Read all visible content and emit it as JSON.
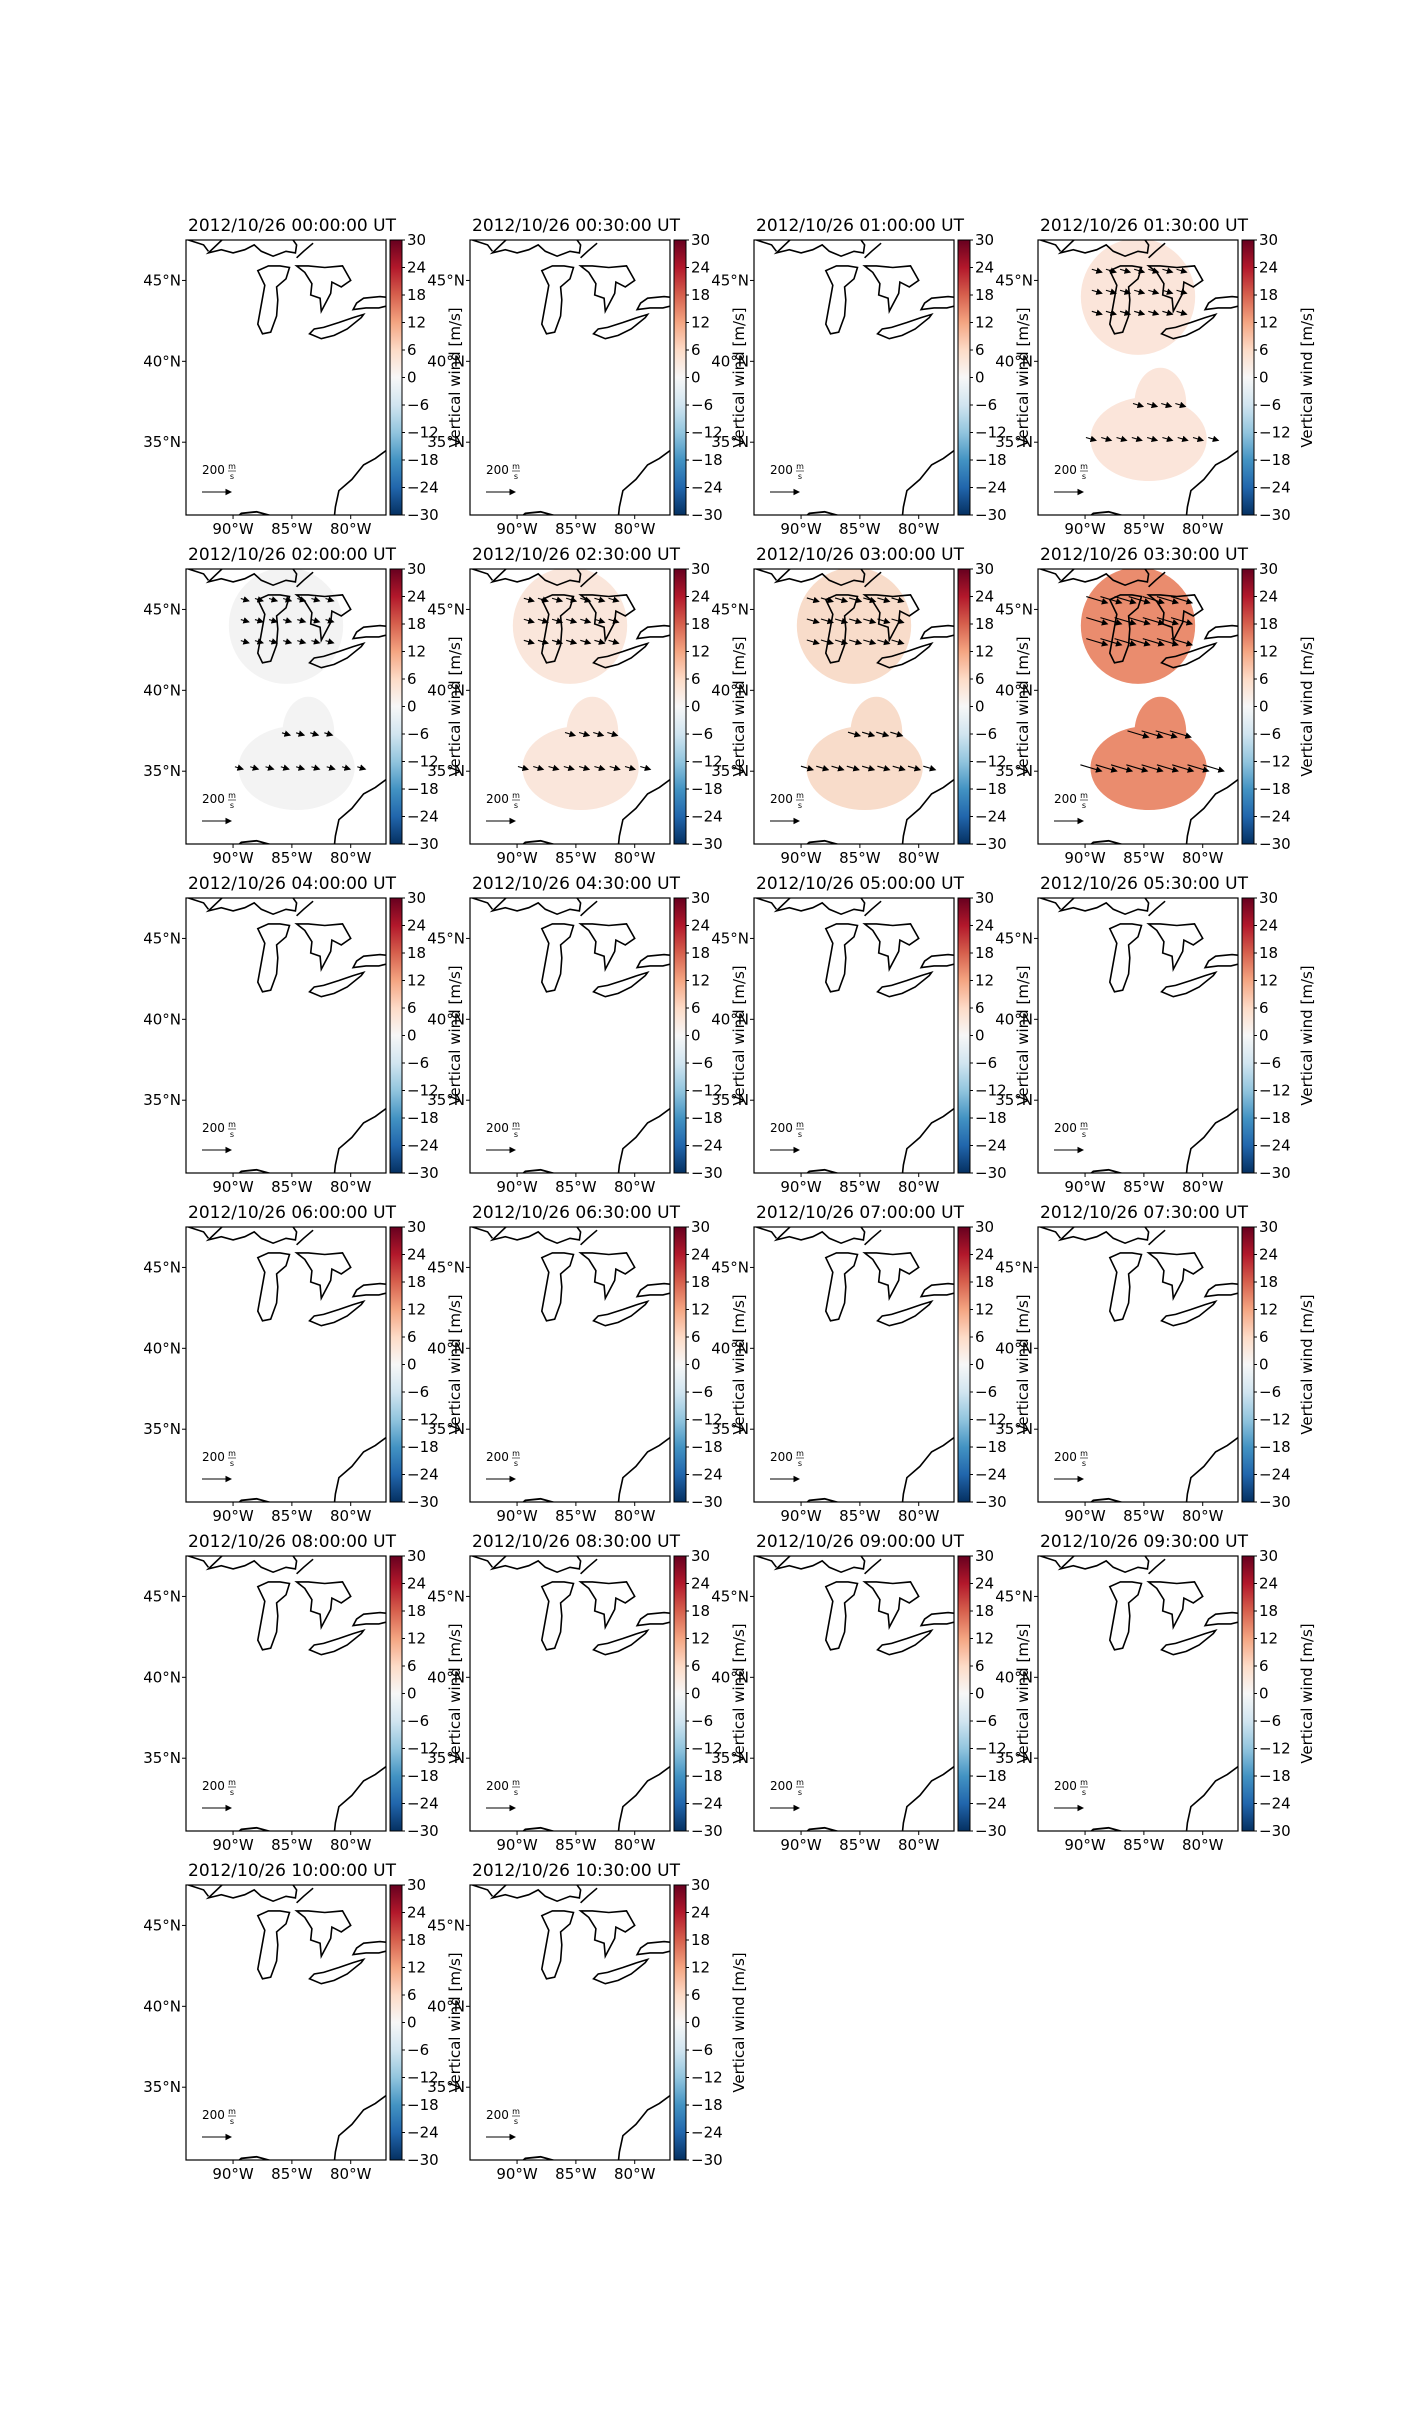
{
  "figure": {
    "layout": {
      "rows": 6,
      "cols": 4
    }
  },
  "colorbar": {
    "label": "Vertical wind [m/s]",
    "ticks": [
      "30",
      "24",
      "18",
      "12",
      "6",
      "0",
      "−6",
      "−12",
      "−18",
      "−24",
      "−30"
    ],
    "range": [
      -30,
      30
    ],
    "colors_top_to_bottom": [
      "#67001f",
      "#b2182b",
      "#d6604d",
      "#f4a582",
      "#fddbc7",
      "#f7f7f7",
      "#d1e5f0",
      "#92c5de",
      "#4393c3",
      "#2166ac",
      "#053061"
    ]
  },
  "map": {
    "x_ticks": [
      "90°W",
      "85°W",
      "80°W"
    ],
    "y_ticks": [
      "45°N",
      "40°N",
      "35°N"
    ],
    "x_range_deg": [
      -94,
      -77
    ],
    "y_range_deg": [
      30.5,
      47.5
    ],
    "coastline_color": "#000000",
    "quiver_key": {
      "value": "200",
      "unit_num": "m",
      "unit_den": "s"
    }
  },
  "chart_data": [
    {
      "type": "heatmap",
      "title": "2012/10/26 00:00:00 UT",
      "vertical_wind_level": null
    },
    {
      "type": "heatmap",
      "title": "2012/10/26 00:30:00 UT",
      "vertical_wind_level": null
    },
    {
      "type": "heatmap",
      "title": "2012/10/26 01:00:00 UT",
      "vertical_wind_level": null
    },
    {
      "type": "heatmap",
      "title": "2012/10/26 01:30:00 UT",
      "vertical_wind_level": 2,
      "fill_color": "#fbe5da",
      "wind_arrows": true
    },
    {
      "type": "heatmap",
      "title": "2012/10/26 02:00:00 UT",
      "vertical_wind_level": 0,
      "fill_color": "#f3f3f3",
      "wind_arrows": true
    },
    {
      "type": "heatmap",
      "title": "2012/10/26 02:30:00 UT",
      "vertical_wind_level": 2,
      "fill_color": "#fae6db",
      "wind_arrows": true
    },
    {
      "type": "heatmap",
      "title": "2012/10/26 03:00:00 UT",
      "vertical_wind_level": 4,
      "fill_color": "#f8dcca",
      "wind_arrows": true
    },
    {
      "type": "heatmap",
      "title": "2012/10/26 03:30:00 UT",
      "vertical_wind_level": 13,
      "fill_color": "#ea8c6e",
      "wind_arrows": true
    },
    {
      "type": "heatmap",
      "title": "2012/10/26 04:00:00 UT",
      "vertical_wind_level": null
    },
    {
      "type": "heatmap",
      "title": "2012/10/26 04:30:00 UT",
      "vertical_wind_level": null
    },
    {
      "type": "heatmap",
      "title": "2012/10/26 05:00:00 UT",
      "vertical_wind_level": null
    },
    {
      "type": "heatmap",
      "title": "2012/10/26 05:30:00 UT",
      "vertical_wind_level": null
    },
    {
      "type": "heatmap",
      "title": "2012/10/26 06:00:00 UT",
      "vertical_wind_level": null
    },
    {
      "type": "heatmap",
      "title": "2012/10/26 06:30:00 UT",
      "vertical_wind_level": null
    },
    {
      "type": "heatmap",
      "title": "2012/10/26 07:00:00 UT",
      "vertical_wind_level": null
    },
    {
      "type": "heatmap",
      "title": "2012/10/26 07:30:00 UT",
      "vertical_wind_level": null
    },
    {
      "type": "heatmap",
      "title": "2012/10/26 08:00:00 UT",
      "vertical_wind_level": null
    },
    {
      "type": "heatmap",
      "title": "2012/10/26 08:30:00 UT",
      "vertical_wind_level": null
    },
    {
      "type": "heatmap",
      "title": "2012/10/26 09:00:00 UT",
      "vertical_wind_level": null
    },
    {
      "type": "heatmap",
      "title": "2012/10/26 09:30:00 UT",
      "vertical_wind_level": null
    },
    {
      "type": "heatmap",
      "title": "2012/10/26 10:00:00 UT",
      "vertical_wind_level": null
    },
    {
      "type": "heatmap",
      "title": "2012/10/26 10:30:00 UT",
      "vertical_wind_level": null
    }
  ]
}
